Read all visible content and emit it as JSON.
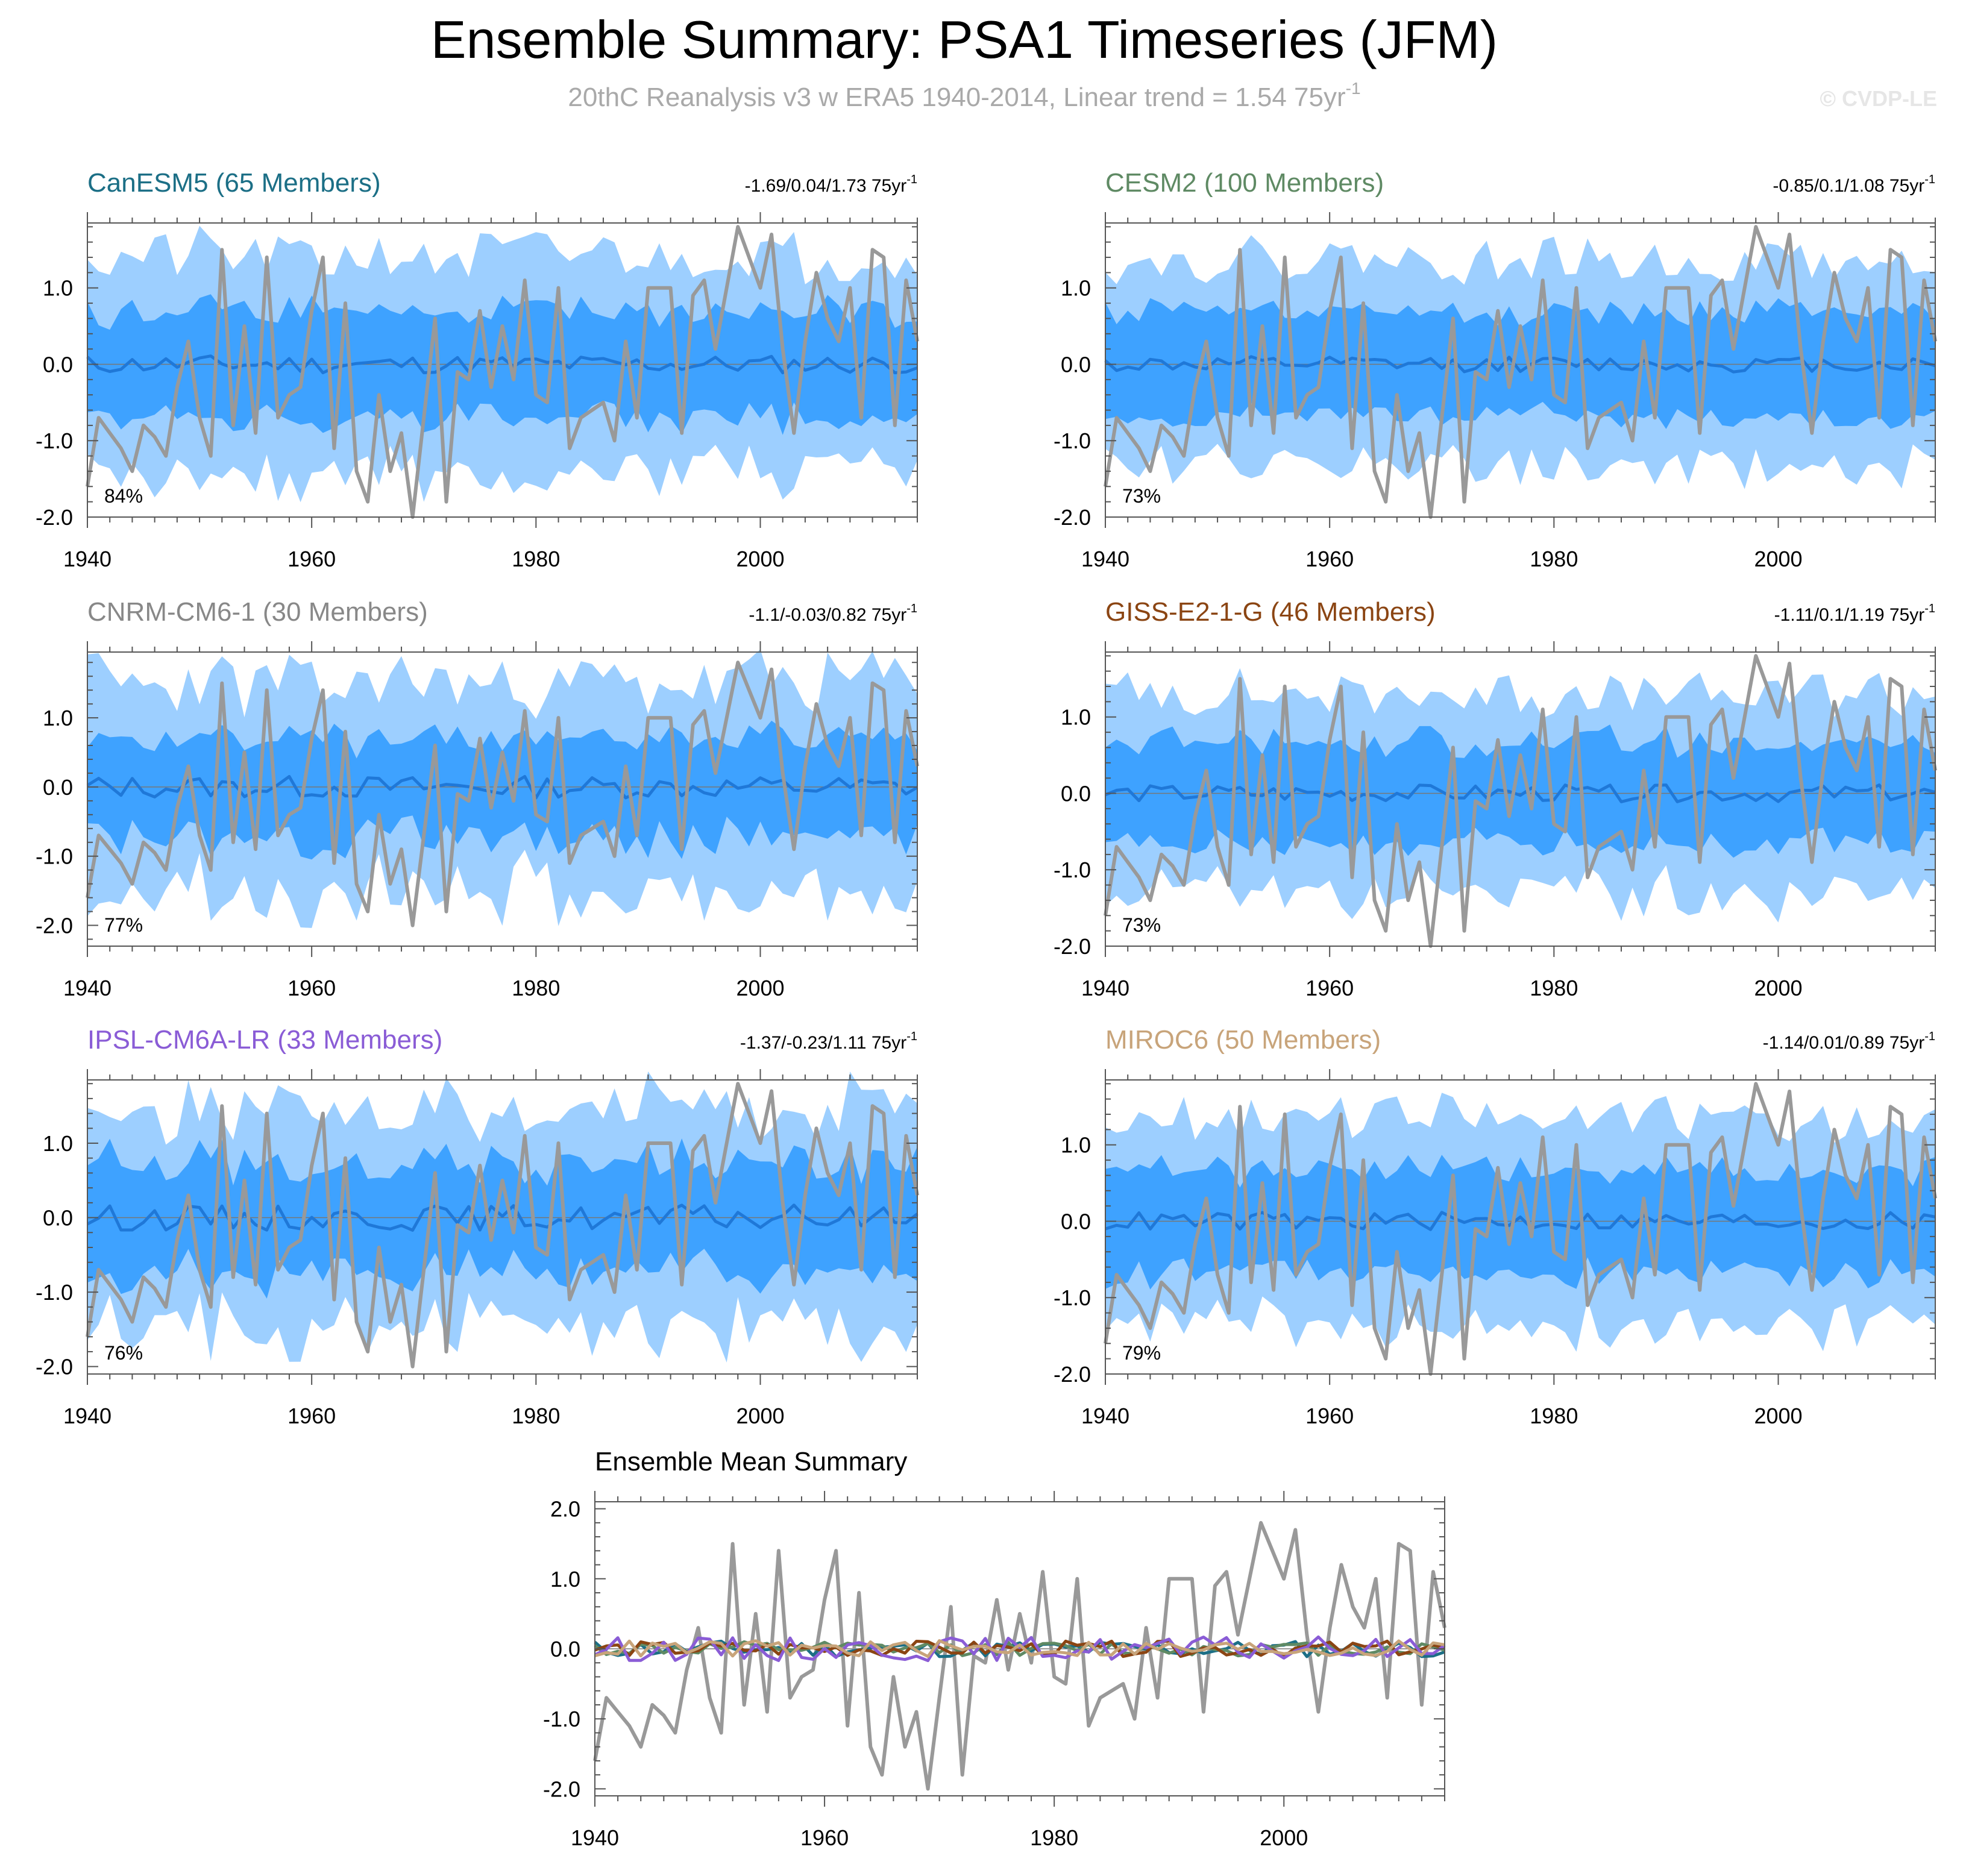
{
  "page": {
    "title": "Ensemble Summary: PSA1 Timeseries (JFM)",
    "subtitle_main": "20thC Reanalysis v3 w ERA5 1940-2014, Linear trend = 1.54 75yr",
    "subtitle_sup": "-1",
    "watermark": "© CVDP-LE"
  },
  "colors": {
    "outer_band": "#9dcfff",
    "inner_band": "#3ea2ff",
    "ensemble_mean": "#1f78d8",
    "observations": "#999999",
    "zero_line": "#777777"
  },
  "chart_data": [
    {
      "type": "area",
      "title": "CanESM5 (65 Members)",
      "title_color": "#1c6f86",
      "trend_text": "-1.69/0.04/1.73 75yr",
      "trend_sup": "-1",
      "pct_label": "84%",
      "xlim": [
        1940,
        2014
      ],
      "ylim": [
        -2.0,
        1.85
      ],
      "yticks": [
        "1.0",
        "0.0",
        "-1.0",
        "-2.0"
      ],
      "xticks": [
        "1940",
        "1960",
        "1980",
        "2000"
      ],
      "obs_seed": 1,
      "mean_seed": 11,
      "mean_amp": 0.12,
      "spread_seed": 21,
      "inner_half": 0.7,
      "outer_half": 1.42,
      "spread_var": 0.22
    },
    {
      "type": "area",
      "title": "CESM2 (100 Members)",
      "title_color": "#5f8a64",
      "trend_text": "-0.85/0.1/1.08 75yr",
      "trend_sup": "-1",
      "pct_label": "73%",
      "xlim": [
        1940,
        2014
      ],
      "ylim": [
        -2.0,
        1.85
      ],
      "yticks": [
        "1.0",
        "0.0",
        "-1.0",
        "-2.0"
      ],
      "xticks": [
        "1940",
        "1960",
        "1980",
        "2000"
      ],
      "obs_seed": 1,
      "mean_seed": 12,
      "mean_amp": 0.1,
      "spread_seed": 22,
      "inner_half": 0.68,
      "outer_half": 1.35,
      "spread_var": 0.18
    },
    {
      "type": "area",
      "title": "CNRM-CM6-1 (30 Members)",
      "title_color": "#888888",
      "trend_text": "-1.1/-0.03/0.82 75yr",
      "trend_sup": "-1",
      "pct_label": "77%",
      "xlim": [
        1940,
        2014
      ],
      "ylim": [
        -2.3,
        1.95
      ],
      "yticks": [
        "1.0",
        "0.0",
        "-1.0",
        "-2.0"
      ],
      "xticks": [
        "1940",
        "1960",
        "1980",
        "2000"
      ],
      "obs_seed": 1,
      "mean_seed": 13,
      "mean_amp": 0.16,
      "spread_seed": 23,
      "inner_half": 0.72,
      "outer_half": 1.5,
      "spread_var": 0.3
    },
    {
      "type": "area",
      "title": "GISS-E2-1-G (46 Members)",
      "title_color": "#8b4513",
      "trend_text": "-1.11/0.1/1.19 75yr",
      "trend_sup": "-1",
      "pct_label": "73%",
      "xlim": [
        1940,
        2014
      ],
      "ylim": [
        -2.0,
        1.85
      ],
      "yticks": [
        "1.0",
        "0.0",
        "-1.0",
        "-2.0"
      ],
      "xticks": [
        "1940",
        "1960",
        "1980",
        "2000"
      ],
      "obs_seed": 1,
      "mean_seed": 14,
      "mean_amp": 0.11,
      "spread_seed": 24,
      "inner_half": 0.66,
      "outer_half": 1.3,
      "spread_var": 0.22
    },
    {
      "type": "area",
      "title": "IPSL-CM6A-LR (33 Members)",
      "title_color": "#8a5cd6",
      "trend_text": "-1.37/-0.23/1.11 75yr",
      "trend_sup": "-1",
      "pct_label": "76%",
      "xlim": [
        1940,
        2014
      ],
      "ylim": [
        -2.1,
        1.85
      ],
      "yticks": [
        "1.0",
        "0.0",
        "-1.0",
        "-2.0"
      ],
      "xticks": [
        "1940",
        "1960",
        "1980",
        "2000"
      ],
      "obs_seed": 1,
      "mean_seed": 15,
      "mean_amp": 0.17,
      "spread_seed": 25,
      "inner_half": 0.74,
      "outer_half": 1.48,
      "spread_var": 0.25
    },
    {
      "type": "area",
      "title": "MIROC6 (50 Members)",
      "title_color": "#c8a47a",
      "trend_text": "-1.14/0.01/0.89 75yr",
      "trend_sup": "-1",
      "pct_label": "79%",
      "xlim": [
        1940,
        2014
      ],
      "ylim": [
        -2.0,
        1.85
      ],
      "yticks": [
        "1.0",
        "0.0",
        "-1.0",
        "-2.0"
      ],
      "xticks": [
        "1940",
        "1960",
        "1980",
        "2000"
      ],
      "obs_seed": 1,
      "mean_seed": 16,
      "mean_amp": 0.12,
      "spread_seed": 26,
      "inner_half": 0.68,
      "outer_half": 1.36,
      "spread_var": 0.2
    },
    {
      "type": "line",
      "title": "Ensemble Mean Summary",
      "xlim": [
        1940,
        2014
      ],
      "ylim": [
        -2.1,
        2.1
      ],
      "yticks": [
        "2.0",
        "1.0",
        "0.0",
        "-1.0",
        "-2.0"
      ],
      "xticks": [
        "1940",
        "1960",
        "1980",
        "2000"
      ],
      "obs_seed": 1,
      "series": [
        {
          "color": "#1c6f86",
          "mean_seed": 11,
          "mean_amp": 0.12
        },
        {
          "color": "#5f8a64",
          "mean_seed": 12,
          "mean_amp": 0.1
        },
        {
          "color": "#8b4513",
          "mean_seed": 14,
          "mean_amp": 0.11
        },
        {
          "color": "#8a5cd6",
          "mean_seed": 15,
          "mean_amp": 0.17
        },
        {
          "color": "#c8a47a",
          "mean_seed": 16,
          "mean_amp": 0.12
        }
      ]
    }
  ]
}
